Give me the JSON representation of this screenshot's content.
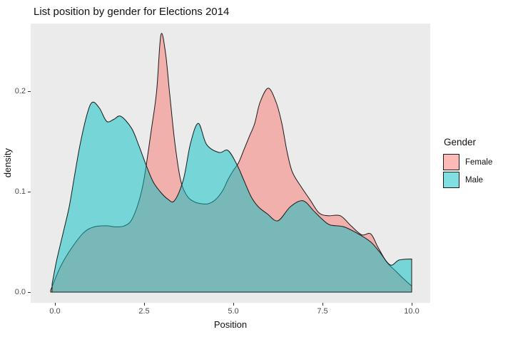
{
  "title": "List position by gender for Elections 2014",
  "colors": {
    "female_fill": "#F8766D",
    "male_fill": "#00BFC4",
    "fill_alpha": 0.5,
    "outline": "#1A1A1A",
    "panel_bg": "#EBEBEB",
    "tick_text": "#4D4D4D"
  },
  "legend": {
    "title": "Gender",
    "entries": [
      {
        "label": "Female",
        "color": "#F8766D"
      },
      {
        "label": "Male",
        "color": "#00BFC4"
      }
    ]
  },
  "chart_data": {
    "type": "area",
    "subtype": "density",
    "title": "List position by gender for Elections 2014",
    "xlabel": "Position",
    "ylabel": "density",
    "xlim": [
      -0.3,
      10.6
    ],
    "ylim": [
      0,
      0.27
    ],
    "grid": false,
    "legend_position": "right",
    "x_ticks": [
      {
        "label": "0.0",
        "value": 0
      },
      {
        "label": "2.5",
        "value": 2.5
      },
      {
        "label": "5.0",
        "value": 5
      },
      {
        "label": "7.5",
        "value": 7.5
      },
      {
        "label": "10.0",
        "value": 10
      }
    ],
    "y_ticks": [
      {
        "label": "0.0",
        "value": 0
      },
      {
        "label": "0.1",
        "value": 0.1
      },
      {
        "label": "0.2",
        "value": 0.2
      }
    ],
    "series": [
      {
        "name": "Female",
        "color": "#F8766D",
        "x": [
          -0.12,
          0.15,
          0.45,
          0.8,
          1.1,
          1.45,
          1.7,
          1.95,
          2.15,
          2.35,
          2.5,
          2.7,
          2.85,
          2.97,
          3.1,
          3.22,
          3.36,
          3.52,
          3.7,
          3.9,
          4.1,
          4.3,
          4.5,
          4.7,
          4.85,
          5.0,
          5.15,
          5.3,
          5.45,
          5.6,
          5.75,
          5.98,
          6.2,
          6.36,
          6.5,
          6.65,
          6.9,
          7.15,
          7.4,
          7.65,
          8.0,
          8.3,
          8.6,
          8.85,
          9.05,
          9.3,
          9.55,
          9.75,
          10.0
        ],
        "density": [
          0.002,
          0.025,
          0.043,
          0.059,
          0.065,
          0.066,
          0.065,
          0.066,
          0.072,
          0.09,
          0.113,
          0.161,
          0.2,
          0.256,
          0.238,
          0.196,
          0.149,
          0.112,
          0.096,
          0.09,
          0.088,
          0.088,
          0.092,
          0.101,
          0.112,
          0.121,
          0.129,
          0.142,
          0.155,
          0.168,
          0.189,
          0.203,
          0.189,
          0.168,
          0.141,
          0.12,
          0.105,
          0.092,
          0.079,
          0.076,
          0.076,
          0.066,
          0.057,
          0.058,
          0.045,
          0.03,
          0.021,
          0.014,
          0.006
        ]
      },
      {
        "name": "Male",
        "color": "#00BFC4",
        "x": [
          -0.08,
          0.05,
          0.25,
          0.4,
          0.55,
          0.7,
          0.9,
          1.05,
          1.25,
          1.45,
          1.65,
          1.85,
          2.15,
          2.35,
          2.55,
          2.75,
          2.95,
          3.15,
          3.35,
          3.6,
          3.8,
          4.02,
          4.25,
          4.6,
          4.85,
          5.1,
          5.3,
          5.5,
          5.7,
          5.95,
          6.25,
          6.6,
          6.95,
          7.25,
          7.45,
          7.7,
          8.1,
          8.5,
          8.85,
          9.1,
          9.4,
          9.65,
          10.0
        ],
        "density": [
          0.008,
          0.032,
          0.062,
          0.085,
          0.116,
          0.146,
          0.177,
          0.189,
          0.183,
          0.17,
          0.172,
          0.175,
          0.163,
          0.146,
          0.127,
          0.11,
          0.1,
          0.093,
          0.091,
          0.112,
          0.148,
          0.168,
          0.147,
          0.139,
          0.141,
          0.127,
          0.111,
          0.095,
          0.085,
          0.078,
          0.071,
          0.085,
          0.091,
          0.081,
          0.074,
          0.067,
          0.065,
          0.058,
          0.05,
          0.04,
          0.027,
          0.032,
          0.033
        ]
      }
    ]
  }
}
